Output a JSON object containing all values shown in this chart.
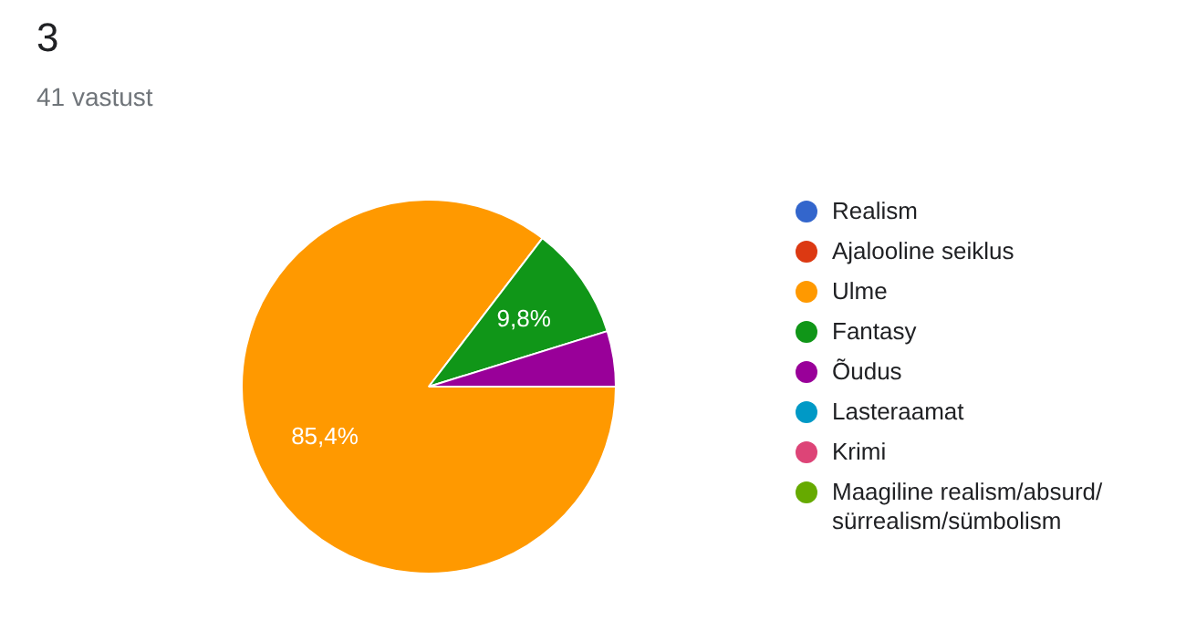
{
  "chart_data": {
    "type": "pie",
    "title": "3",
    "subtitle": "41 vastust",
    "categories": [
      "Realism",
      "Ajalooline seiklus",
      "Ulme",
      "Fantasy",
      "Õudus",
      "Lasteraamat",
      "Krimi",
      "Maagiline realism/absurd/ sürrealism/sümbolism"
    ],
    "values": [
      0,
      0,
      85.4,
      9.8,
      4.8,
      0,
      0,
      0
    ],
    "colors": [
      "#3366cc",
      "#dc3912",
      "#ff9900",
      "#109618",
      "#990099",
      "#0099c6",
      "#dd4477",
      "#66aa00"
    ],
    "value_labels": [
      null,
      null,
      "85,4%",
      "9,8%",
      null,
      null,
      null,
      null
    ],
    "legend": "right"
  }
}
